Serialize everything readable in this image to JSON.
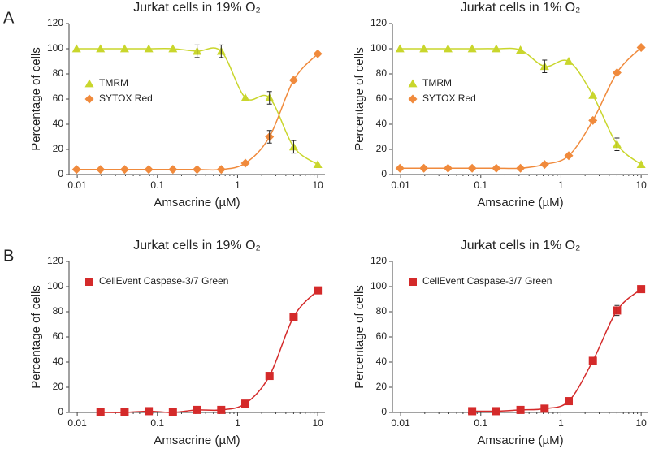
{
  "chart_data": [
    {
      "type": "line",
      "panel_label": "A",
      "title": "Jurkat cells in 19% O₂",
      "xlabel": "Amsacrine (µM)",
      "ylabel": "Percentage of cells",
      "xscale": "log",
      "x": [
        0.0098,
        0.0195,
        0.039,
        0.078,
        0.156,
        0.3125,
        0.625,
        1.25,
        2.5,
        5,
        10
      ],
      "xlim": [
        0.0079,
        12.3
      ],
      "xticks": [
        0.01,
        0.1,
        1,
        10
      ],
      "ylim": [
        0,
        120
      ],
      "yticks": [
        0,
        20,
        40,
        60,
        80,
        100,
        120
      ],
      "legend": "center left",
      "series": [
        {
          "name": "TMRM",
          "color": "#c9d62c",
          "marker": "triangle",
          "values": [
            100,
            100,
            100,
            100,
            100,
            98,
            98,
            61,
            61,
            22,
            8
          ],
          "errors": [
            null,
            null,
            null,
            null,
            null,
            5,
            5,
            null,
            5,
            5,
            null
          ]
        },
        {
          "name": "SYTOX Red",
          "color": "#f08a3c",
          "marker": "diamond",
          "values": [
            4,
            4,
            4,
            4,
            4,
            4,
            4,
            9,
            30,
            75,
            96
          ],
          "errors": [
            null,
            null,
            null,
            null,
            null,
            null,
            null,
            null,
            5,
            null,
            null
          ]
        }
      ]
    },
    {
      "type": "line",
      "title": "Jurkat cells in 1% O₂",
      "xlabel": "Amsacrine (µM)",
      "ylabel": "Percentage of cells",
      "xscale": "log",
      "x": [
        0.0098,
        0.0195,
        0.039,
        0.078,
        0.156,
        0.3125,
        0.625,
        1.25,
        2.5,
        5,
        10
      ],
      "xlim": [
        0.0079,
        12.3
      ],
      "xticks": [
        0.01,
        0.1,
        1,
        10
      ],
      "ylim": [
        0,
        120
      ],
      "yticks": [
        0,
        20,
        40,
        60,
        80,
        100,
        120
      ],
      "legend": "center left",
      "series": [
        {
          "name": "TMRM",
          "color": "#c9d62c",
          "marker": "triangle",
          "values": [
            100,
            100,
            100,
            100,
            100,
            99,
            86,
            90,
            63,
            24,
            8
          ],
          "errors": [
            null,
            null,
            null,
            null,
            null,
            null,
            5,
            null,
            null,
            5,
            null
          ]
        },
        {
          "name": "SYTOX Red",
          "color": "#f08a3c",
          "marker": "diamond",
          "values": [
            5,
            5,
            5,
            5,
            5,
            5,
            8,
            15,
            43,
            81,
            101
          ],
          "errors": [
            null,
            null,
            null,
            null,
            null,
            null,
            null,
            null,
            null,
            null,
            null
          ]
        }
      ]
    },
    {
      "type": "line",
      "panel_label": "B",
      "title": "Jurkat cells in 19% O₂",
      "xlabel": "Amsacrine (µM)",
      "ylabel": "Percentage of cells",
      "xscale": "log",
      "x": [
        0.0195,
        0.039,
        0.078,
        0.156,
        0.3125,
        0.625,
        1.25,
        2.5,
        5,
        10
      ],
      "xlim": [
        0.0079,
        12.3
      ],
      "xticks": [
        0.01,
        0.1,
        1,
        10
      ],
      "ylim": [
        0,
        120
      ],
      "yticks": [
        0,
        20,
        40,
        60,
        80,
        100,
        120
      ],
      "legend": "upper left",
      "series": [
        {
          "name": "CellEvent Caspase-3/7 Green",
          "color": "#d42a2a",
          "marker": "square",
          "values": [
            0,
            0,
            1,
            0,
            2,
            2,
            7,
            29,
            76,
            97
          ],
          "errors": [
            null,
            null,
            null,
            null,
            null,
            null,
            null,
            null,
            null,
            null
          ]
        }
      ]
    },
    {
      "type": "line",
      "title": "Jurkat cells in 1% O₂",
      "xlabel": "Amsacrine (µM)",
      "ylabel": "Percentage of cells",
      "xscale": "log",
      "x": [
        0.078,
        0.156,
        0.3125,
        0.625,
        1.25,
        2.5,
        5,
        10
      ],
      "xlim": [
        0.0079,
        12.3
      ],
      "xticks": [
        0.01,
        0.1,
        1,
        10
      ],
      "ylim": [
        0,
        120
      ],
      "yticks": [
        0,
        20,
        40,
        60,
        80,
        100,
        120
      ],
      "legend": "upper left",
      "series": [
        {
          "name": "CellEvent Caspase-3/7 Green",
          "color": "#d42a2a",
          "marker": "square",
          "values": [
            1,
            1,
            2,
            3,
            9,
            41,
            81,
            98
          ],
          "errors": [
            null,
            null,
            null,
            null,
            null,
            null,
            4,
            null
          ]
        }
      ]
    }
  ]
}
